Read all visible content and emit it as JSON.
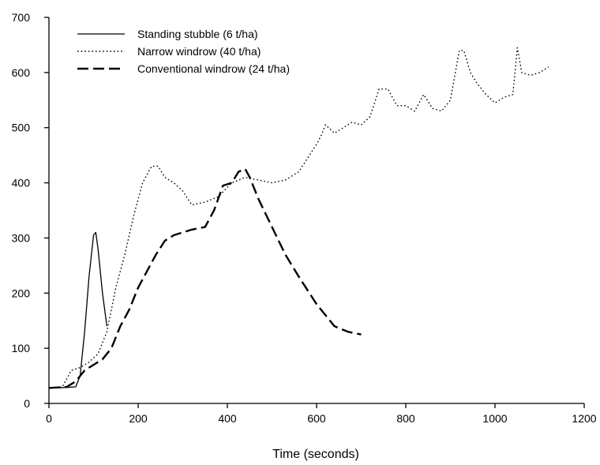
{
  "chart_data": {
    "type": "line",
    "xlabel": "Time (seconds)",
    "ylabel": "",
    "xlim": [
      0,
      1200
    ],
    "ylim": [
      0,
      700
    ],
    "xticks": [
      0,
      200,
      400,
      600,
      800,
      1000,
      1200
    ],
    "yticks": [
      0,
      100,
      200,
      300,
      400,
      500,
      600,
      700
    ],
    "grid": false,
    "legend_position": "top-left",
    "series": [
      {
        "name": "Standing stubble (6 t/ha)",
        "style": "solid",
        "x": [
          0,
          20,
          40,
          60,
          70,
          80,
          90,
          100,
          105,
          110,
          120,
          130
        ],
        "y": [
          28,
          28,
          29,
          30,
          50,
          130,
          230,
          305,
          310,
          280,
          200,
          140
        ]
      },
      {
        "name": "Narrow windrow (40 t/ha)",
        "style": "dotted",
        "x": [
          0,
          30,
          50,
          70,
          90,
          110,
          130,
          150,
          170,
          190,
          210,
          230,
          245,
          260,
          280,
          300,
          320,
          350,
          380,
          410,
          440,
          470,
          500,
          530,
          560,
          580,
          600,
          610,
          620,
          640,
          660,
          680,
          700,
          720,
          740,
          760,
          780,
          800,
          820,
          840,
          860,
          880,
          900,
          920,
          930,
          945,
          960,
          980,
          1000,
          1020,
          1040,
          1050,
          1060,
          1080,
          1100,
          1120
        ],
        "y": [
          28,
          30,
          60,
          65,
          75,
          90,
          130,
          210,
          270,
          340,
          400,
          430,
          430,
          410,
          400,
          385,
          360,
          365,
          375,
          400,
          410,
          405,
          400,
          405,
          420,
          445,
          470,
          485,
          505,
          490,
          500,
          510,
          505,
          520,
          570,
          570,
          540,
          540,
          530,
          560,
          535,
          530,
          550,
          640,
          640,
          600,
          580,
          560,
          545,
          555,
          560,
          645,
          600,
          595,
          600,
          610
        ]
      },
      {
        "name": "Conventional windrow (24 t/ha)",
        "style": "dashed",
        "x": [
          0,
          40,
          60,
          80,
          100,
          120,
          140,
          160,
          180,
          200,
          220,
          240,
          260,
          280,
          300,
          320,
          350,
          370,
          390,
          410,
          425,
          440,
          450,
          470,
          500,
          530,
          560,
          600,
          640,
          670,
          700
        ],
        "y": [
          28,
          30,
          40,
          60,
          70,
          80,
          100,
          140,
          170,
          210,
          240,
          270,
          295,
          305,
          310,
          315,
          320,
          350,
          395,
          400,
          420,
          425,
          410,
          370,
          320,
          270,
          230,
          180,
          140,
          130,
          125
        ]
      }
    ]
  }
}
